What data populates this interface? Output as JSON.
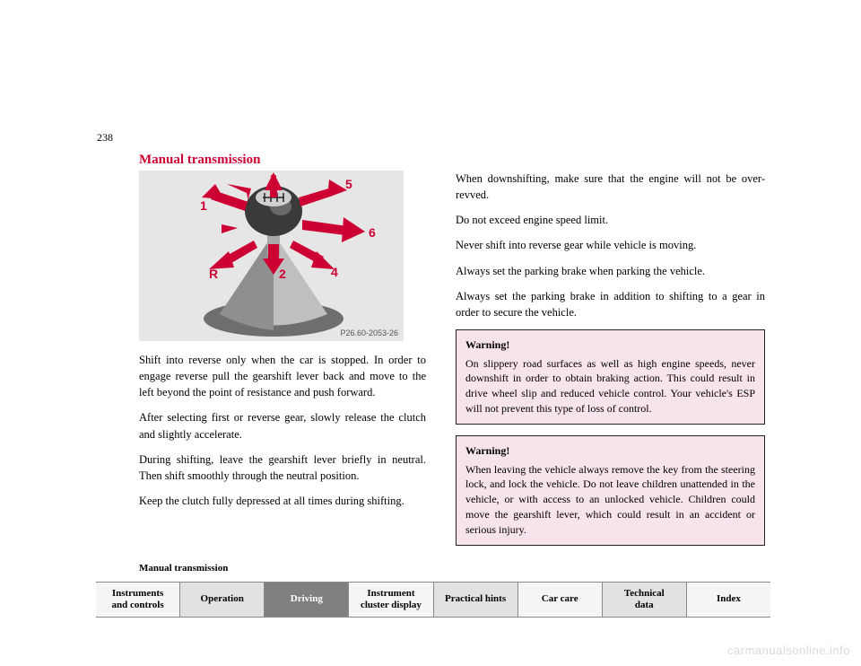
{
  "page_number": "238",
  "heading_text": "Manual transmission",
  "heading_color": "#cc0033",
  "figure": {
    "label": "P26.60-2053-26",
    "bg": "#e6e6e6",
    "knob_dark": "#3a3a3a",
    "knob_light": "#d0d0d0",
    "shaft": "#a8a8a8",
    "boot_light": "#bfbfbf",
    "boot_dark": "#6e6e6e",
    "arrow_fill": "#cc0033",
    "gears": {
      "1": "1",
      "2": "2",
      "3": "3",
      "4": "4",
      "5": "5",
      "6": "6",
      "R": "R"
    }
  },
  "left_paragraphs": [
    "Shift into reverse only when the car is stopped. In order to engage reverse pull the gearshift lever back and move to the left beyond the point of resistance and push forward.",
    "After selecting first or reverse gear, slowly release the clutch and slightly accelerate.",
    "During shifting, leave the gearshift lever briefly in neutral. Then shift smoothly through the neutral position.",
    "Keep the clutch fully depressed at all times during shifting."
  ],
  "right_paragraphs": [
    "When downshifting, make sure that the engine will not be over-revved.",
    "Do not exceed engine speed limit.",
    "Never shift into reverse gear while vehicle is moving.",
    "Always set the parking brake when parking the vehicle.",
    "Always set the parking brake in addition to shifting to a gear in order to secure the vehicle."
  ],
  "warnings": [
    {
      "title": "Warning!",
      "body": "On slippery road surfaces as well as high engine speeds, never downshift in order to obtain braking action. This could result in drive wheel slip and reduced vehicle control. Your vehicle's ESP will not prevent this type of loss of control."
    },
    {
      "title": "Warning!",
      "body": "When leaving the vehicle always remove the key from the steering lock, and lock the vehicle. Do not leave children unattended in the vehicle, or with access to an unlocked vehicle. Children could move the gearshift lever, which could result in an accident or serious injury."
    }
  ],
  "crumb_text": "Manual transmission",
  "nav": [
    {
      "label_line1": "Instruments",
      "label_line2": "and controls",
      "style": "a"
    },
    {
      "label_line1": "Operation",
      "label_line2": "",
      "style": "b"
    },
    {
      "label_line1": "Driving",
      "label_line2": "",
      "style": "active"
    },
    {
      "label_line1": "Instrument",
      "label_line2": "cluster display",
      "style": "a"
    },
    {
      "label_line1": "Practical hints",
      "label_line2": "",
      "style": "b"
    },
    {
      "label_line1": "Car care",
      "label_line2": "",
      "style": "a"
    },
    {
      "label_line1": "Technical",
      "label_line2": "data",
      "style": "b"
    },
    {
      "label_line1": "Index",
      "label_line2": "",
      "style": "a"
    }
  ],
  "watermark": "carmanualsonline.info"
}
